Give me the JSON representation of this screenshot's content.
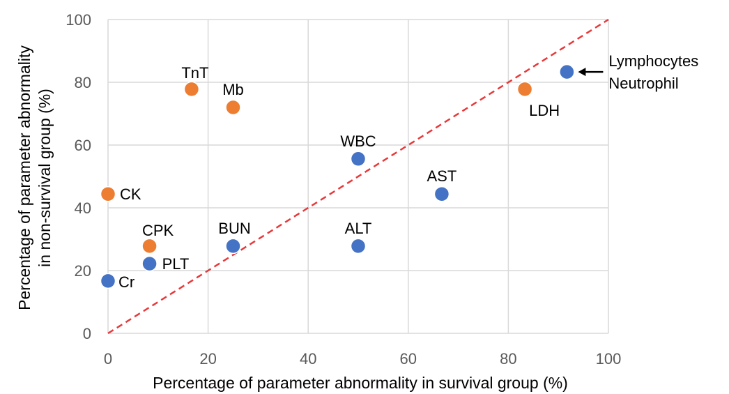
{
  "chart_data": {
    "type": "scatter",
    "title": "",
    "xlabel": "Percentage of parameter abnormality in survival group (%)",
    "ylabel_lines": [
      "Percentage of parameter abnormality",
      "in non-survival group (%)"
    ],
    "xlim": [
      0,
      100
    ],
    "ylim": [
      0,
      100
    ],
    "xticks": [
      0,
      20,
      40,
      60,
      80,
      100
    ],
    "yticks": [
      0,
      20,
      40,
      60,
      80,
      100
    ],
    "grid": true,
    "reference_line": {
      "x": [
        0,
        100
      ],
      "y": [
        0,
        100
      ],
      "color": "#e8383a",
      "style": "dashed"
    },
    "series": [
      {
        "color": "#ed7d31",
        "points": [
          {
            "label": "TnT",
            "x": 16.7,
            "y": 77.8
          },
          {
            "label": "Mb",
            "x": 25.0,
            "y": 72.0
          },
          {
            "label": "LDH",
            "x": 83.3,
            "y": 77.8
          },
          {
            "label": "CK",
            "x": 0.0,
            "y": 44.4
          },
          {
            "label": "CPK",
            "x": 8.3,
            "y": 27.8
          }
        ]
      },
      {
        "color": "#4472c4",
        "points": [
          {
            "label": "WBC",
            "x": 50.0,
            "y": 55.6
          },
          {
            "label": "AST",
            "x": 66.7,
            "y": 44.4
          },
          {
            "label": "ALT",
            "x": 50.0,
            "y": 27.8
          },
          {
            "label": "BUN",
            "x": 25.0,
            "y": 27.8
          },
          {
            "label": "PLT",
            "x": 8.3,
            "y": 22.2
          },
          {
            "label": "Cr",
            "x": 0.0,
            "y": 16.7
          },
          {
            "label": "Lymphocytes\nNeutrophil",
            "x": 91.7,
            "y": 83.3
          }
        ]
      }
    ],
    "annotation": {
      "lines": [
        "Lymphocytes",
        "Neutrophil"
      ],
      "points_to": "Lymphocytes\nNeutrophil"
    }
  }
}
